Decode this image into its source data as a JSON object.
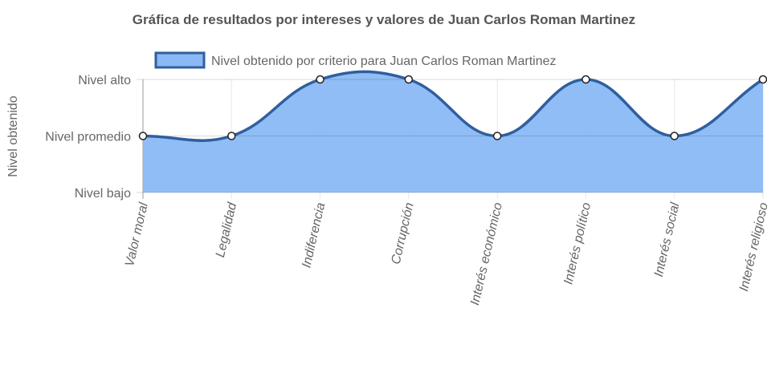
{
  "chart_data": {
    "type": "line",
    "title": "Gráfica de resultados por intereses y valores de Juan Carlos Roman Martinez",
    "y_label": "Nivel obtenido",
    "categories": [
      "Valor moral",
      "Legalidad",
      "Indiferencia",
      "Corrupción",
      "Interés económico",
      "Interés político",
      "Interés social",
      "Interés religioso"
    ],
    "series": [
      {
        "name": "Nivel obtenido por criterio para Juan Carlos Roman Martinez",
        "color": "#2f5f9e",
        "fill": "#8ab9f5",
        "values": [
          2,
          2,
          3,
          3,
          2,
          3,
          2,
          3
        ]
      }
    ],
    "ylim": [
      1,
      3
    ],
    "yticks": [
      {
        "value": 1,
        "label": "Nivel bajo"
      },
      {
        "value": 2,
        "label": "Nivel promedio"
      },
      {
        "value": 3,
        "label": "Nivel alto"
      }
    ],
    "grid": true,
    "legend": "top"
  }
}
